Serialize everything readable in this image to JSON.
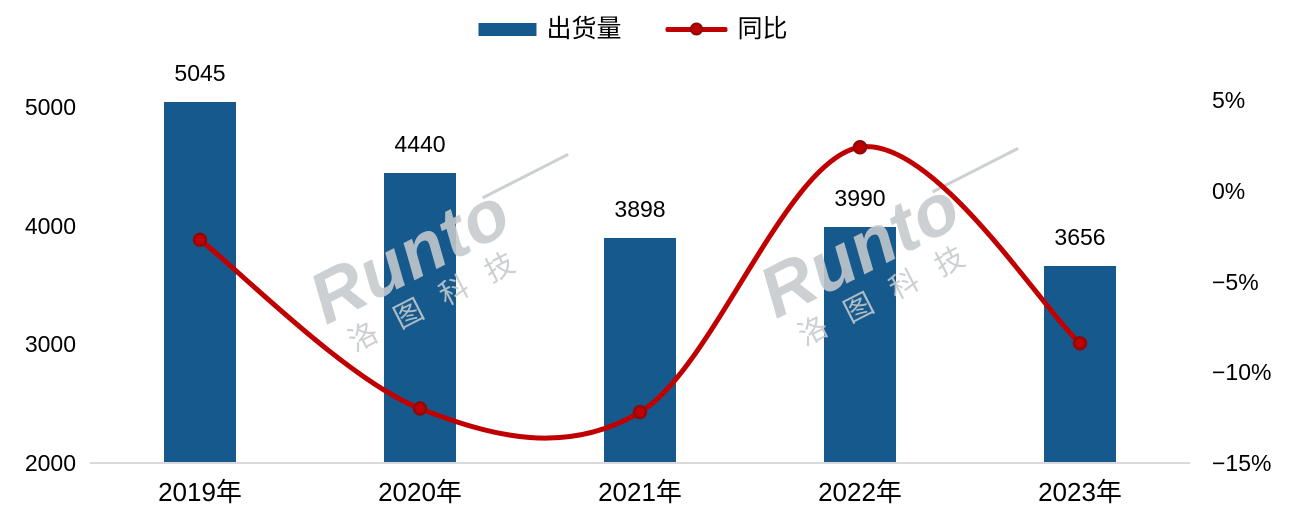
{
  "legend": {
    "items": [
      {
        "label": "出货量",
        "type": "bar",
        "color": "#165a8d"
      },
      {
        "label": "同比",
        "type": "line",
        "color": "#c00000"
      }
    ]
  },
  "watermark": {
    "brand": "Runto",
    "cn": "洛图科技"
  },
  "colors": {
    "bar": "#165a8d",
    "line": "#c00000",
    "marker_ring": "#8e0a0a",
    "axis_line": "#d9d9d9",
    "text": "#000000",
    "watermark": "#c6cacd"
  },
  "chart_data": {
    "type": "bar",
    "subtype": "bar-line-combo",
    "title": "",
    "categories": [
      "2019年",
      "2020年",
      "2021年",
      "2022年",
      "2023年"
    ],
    "series": [
      {
        "name": "出货量",
        "type": "bar",
        "axis": "left",
        "values": [
          5045,
          4440,
          3898,
          3990,
          3656
        ]
      },
      {
        "name": "同比",
        "type": "line",
        "axis": "right",
        "values_pct": [
          -2.7,
          -12.0,
          -12.2,
          2.4,
          -8.4
        ]
      }
    ],
    "bar_labels": [
      "5045",
      "4440",
      "3898",
      "3990",
      "3656"
    ],
    "left_axis": {
      "ticks": [
        2000,
        3000,
        4000,
        5000
      ],
      "range": [
        2000,
        5000
      ]
    },
    "right_axis": {
      "ticks": [
        {
          "label": "5%",
          "pct": 5
        },
        {
          "label": "0%",
          "pct": 0
        },
        {
          "label": "−5%",
          "pct": -5
        },
        {
          "label": "−10%",
          "pct": -10
        },
        {
          "label": "−15%",
          "pct": -15
        }
      ],
      "range_pct": [
        -15,
        5
      ]
    },
    "grid": "off",
    "legend_position": "top-center",
    "line_style": "smooth"
  }
}
